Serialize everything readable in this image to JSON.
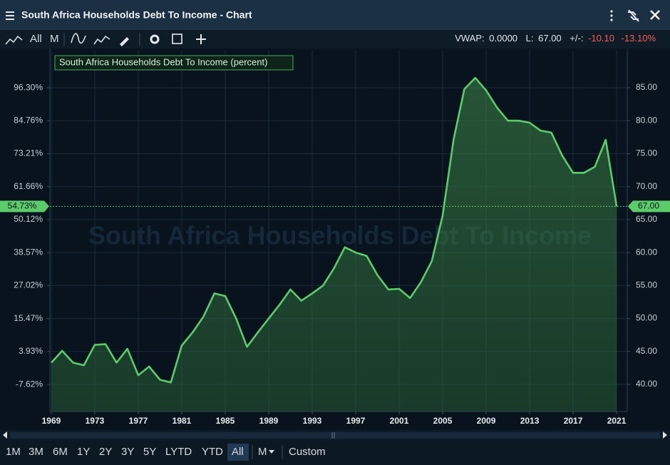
{
  "header": {
    "title": "South Africa Households Debt To Income - Chart"
  },
  "toolbar": {
    "items": [
      "All",
      "M"
    ]
  },
  "stats": [
    {
      "label": "VWAP:",
      "value": "0.0000"
    },
    {
      "label": "L:",
      "value": "67.00"
    },
    {
      "label": "+/-:",
      "value": "-10.10"
    },
    {
      "value": "-13.10%"
    }
  ],
  "range_buttons": [
    "1M",
    "3M",
    "6M",
    "1Y",
    "2Y",
    "3Y",
    "5Y",
    "LYTD",
    "YTD",
    "All",
    "M",
    "Custom"
  ],
  "chart_data": {
    "type": "area",
    "watermark": "South Africa Households Debt To Income",
    "x": [
      1969,
      1970,
      1971,
      1972,
      1973,
      1974,
      1975,
      1976,
      1977,
      1978,
      1979,
      1980,
      1981,
      1982,
      1983,
      1984,
      1985,
      1986,
      1987,
      1988,
      1989,
      1990,
      1991,
      1992,
      1993,
      1994,
      1995,
      1996,
      1997,
      1998,
      1999,
      2000,
      2001,
      2002,
      2003,
      2004,
      2005,
      2006,
      2007,
      2008,
      2009,
      2010,
      2011,
      2012,
      2013,
      2014,
      2015,
      2016,
      2017,
      2018,
      2019,
      2020,
      2021
    ],
    "series": [
      {
        "name": "South Africa Households Debt To Income (percent)",
        "color": "#5ccc6a",
        "values": [
          43.3,
          45.1,
          43.3,
          42.9,
          46.0,
          46.1,
          43.3,
          45.4,
          41.4,
          42.7,
          40.7,
          40.3,
          45.9,
          47.9,
          50.3,
          53.8,
          53.4,
          50.0,
          45.7,
          47.9,
          50.0,
          52.1,
          54.4,
          52.7,
          53.8,
          55.0,
          57.6,
          60.8,
          60.0,
          59.5,
          56.6,
          54.4,
          54.5,
          53.1,
          55.5,
          58.7,
          65.6,
          77.1,
          84.8,
          86.5,
          84.6,
          82.0,
          80.0,
          80.0,
          79.7,
          78.5,
          78.2,
          74.7,
          72.1,
          72.1,
          73.0,
          77.1,
          67.0
        ]
      }
    ],
    "xlim": [
      1968.87,
      2021.98
    ],
    "xticks": [
      1969,
      1973,
      1977,
      1981,
      1985,
      1989,
      1993,
      1997,
      2001,
      2005,
      2009,
      2013,
      2017,
      2021
    ],
    "ylim": [
      35.89,
      87.49
    ],
    "yticks": [
      {
        "value": 85,
        "label": "85.00"
      },
      {
        "value": 80,
        "label": "80.00"
      },
      {
        "value": 75,
        "label": "75.00"
      },
      {
        "value": 70,
        "label": "70.00"
      },
      {
        "value": 65,
        "label": "65.00"
      },
      {
        "value": 60,
        "label": "60.00"
      },
      {
        "value": 55,
        "label": "55.00"
      },
      {
        "value": 50,
        "label": "50.00"
      },
      {
        "value": 45,
        "label": "45.00"
      },
      {
        "value": 40,
        "label": "40.00"
      }
    ],
    "y2lim": [
      -17.09,
      102.07
    ],
    "y2ticks": [
      {
        "value": 96.3,
        "label": "96.30%"
      },
      {
        "value": 84.76,
        "label": "84.76%"
      },
      {
        "value": 73.21,
        "label": "73.21%"
      },
      {
        "value": 61.66,
        "label": "61.66%"
      },
      {
        "value": 50.12,
        "label": "50.12%"
      },
      {
        "value": 38.57,
        "label": "38.57%"
      },
      {
        "value": 27.02,
        "label": "27.02%"
      },
      {
        "value": 15.47,
        "label": "15.47%"
      },
      {
        "value": 3.93,
        "label": "3.93%"
      },
      {
        "value": -7.62,
        "label": "-7.62%"
      }
    ],
    "last_marker": {
      "value": 67,
      "label": "67.00",
      "y2_value": 54.73,
      "y2_label": "54.73%"
    },
    "grid": true
  }
}
